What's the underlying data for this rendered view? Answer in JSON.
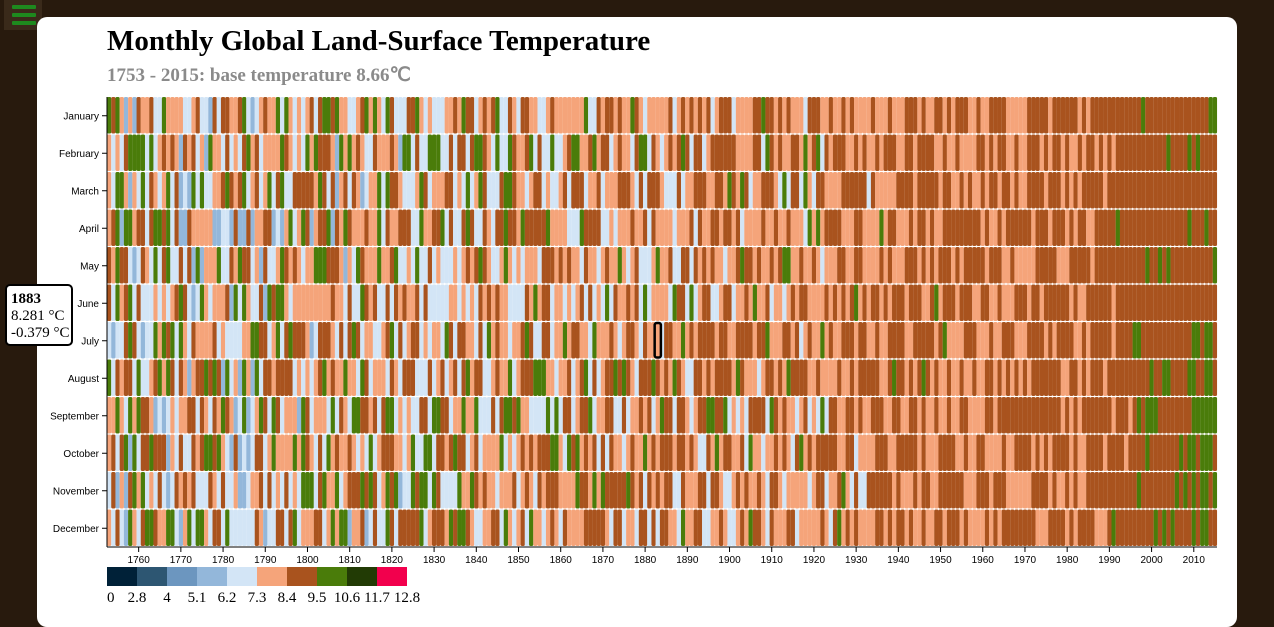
{
  "menu": {
    "icon": "hamburger-menu-icon"
  },
  "chart_data": {
    "type": "heatmap",
    "title": "Monthly Global Land-Surface Temperature",
    "subtitle": "1753 - 2015: base temperature 8.66℃",
    "x_range": [
      1753,
      2015
    ],
    "x_ticks": [
      1760,
      1770,
      1780,
      1790,
      1800,
      1810,
      1820,
      1830,
      1840,
      1850,
      1860,
      1870,
      1880,
      1890,
      1900,
      1910,
      1920,
      1930,
      1940,
      1950,
      1960,
      1970,
      1980,
      1990,
      2000,
      2010
    ],
    "months": [
      "January",
      "February",
      "March",
      "April",
      "May",
      "June",
      "July",
      "August",
      "September",
      "October",
      "November",
      "December"
    ],
    "base_temperature": 8.66,
    "legend": {
      "thresholds": [
        0,
        2.8,
        4,
        5.1,
        6.2,
        7.3,
        8.4,
        9.5,
        10.6,
        11.7,
        12.8
      ],
      "colors": [
        "#002138",
        "#2d5672",
        "#6c96bf",
        "#93b7da",
        "#d3e5f6",
        "#f5a47a",
        "#a9531e",
        "#4a7c0a",
        "#223b05",
        "#f2004d"
      ]
    },
    "highlighted_cell": {
      "year": 1883,
      "month": "July",
      "temperature": "8.281 °C",
      "variance": "-0.379 °C"
    },
    "grid": false,
    "legend_placement": "bottom-left"
  },
  "tooltip": {
    "year": "1883",
    "temperature": "8.281 °C",
    "variance": "-0.379 °C"
  }
}
